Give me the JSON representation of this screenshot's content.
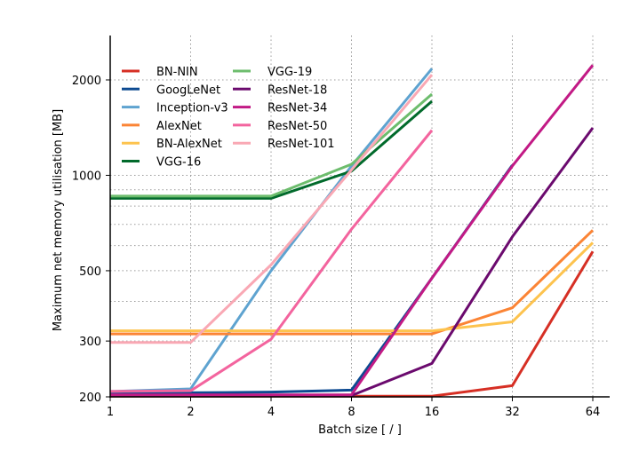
{
  "chart_data": {
    "type": "line",
    "title": "",
    "xlabel": "Batch size [ / ]",
    "ylabel": "Maximum net memory utilisation [MB]",
    "xscale": "log2",
    "yscale": "log",
    "x": [
      1,
      2,
      4,
      8,
      16,
      32,
      64
    ],
    "xticks": [
      "1",
      "2",
      "4",
      "8",
      "16",
      "32",
      "64"
    ],
    "yticks": [
      200,
      300,
      500,
      1000,
      2000
    ],
    "ytick_labels": [
      "200",
      "300",
      "500",
      "1000",
      "2000"
    ],
    "ylim": [
      200,
      2450
    ],
    "grid": true,
    "legend_position": "top-left",
    "series": [
      {
        "name": "BN-NIN",
        "color": "#d62f24",
        "x": [
          1,
          2,
          4,
          8,
          16,
          32,
          64
        ],
        "values": [
          201,
          201,
          201,
          201,
          201,
          217,
          575
        ]
      },
      {
        "name": "GoogLeNet",
        "color": "#0d4a91",
        "x": [
          1,
          2,
          4,
          8,
          16,
          32
        ],
        "values": [
          205,
          206,
          207,
          210,
          474,
          1077
        ]
      },
      {
        "name": "Inception-v3",
        "color": "#5ea3d0",
        "x": [
          1,
          2,
          4,
          8,
          16
        ],
        "values": [
          208,
          212,
          500,
          1070,
          2170
        ]
      },
      {
        "name": "AlexNet",
        "color": "#fb8435",
        "x": [
          1,
          2,
          4,
          8,
          16,
          32,
          64
        ],
        "values": [
          316,
          316,
          316,
          316,
          316,
          382,
          671
        ]
      },
      {
        "name": "BN-AlexNet",
        "color": "#fdc34e",
        "x": [
          1,
          2,
          4,
          8,
          16,
          32,
          64
        ],
        "values": [
          323,
          323,
          323,
          323,
          323,
          345,
          613
        ]
      },
      {
        "name": "VGG-16",
        "color": "#016a2b",
        "x": [
          1,
          2,
          4,
          8,
          16
        ],
        "values": [
          846,
          846,
          846,
          1031,
          1713
        ]
      },
      {
        "name": "VGG-19",
        "color": "#6dbd6d",
        "x": [
          1,
          2,
          4,
          8,
          16
        ],
        "values": [
          860,
          860,
          860,
          1084,
          1804
        ]
      },
      {
        "name": "ResNet-18",
        "color": "#6b0a6e",
        "x": [
          1,
          2,
          4,
          8,
          16,
          32,
          64
        ],
        "values": [
          202,
          202,
          202,
          202,
          255,
          640,
          1412
        ]
      },
      {
        "name": "ResNet-34",
        "color": "#c21a85",
        "x": [
          1,
          2,
          4,
          8,
          16,
          32,
          64
        ],
        "values": [
          203,
          203,
          203,
          203,
          474,
          1070,
          2228
        ]
      },
      {
        "name": "ResNet-50",
        "color": "#f3649e",
        "x": [
          1,
          2,
          4,
          8,
          16
        ],
        "values": [
          208,
          209,
          304,
          676,
          1387
        ]
      },
      {
        "name": "ResNet-101",
        "color": "#f9a8b4",
        "x": [
          1,
          2,
          4,
          8,
          16
        ],
        "values": [
          297,
          297,
          522,
          1040,
          2076
        ]
      }
    ]
  }
}
